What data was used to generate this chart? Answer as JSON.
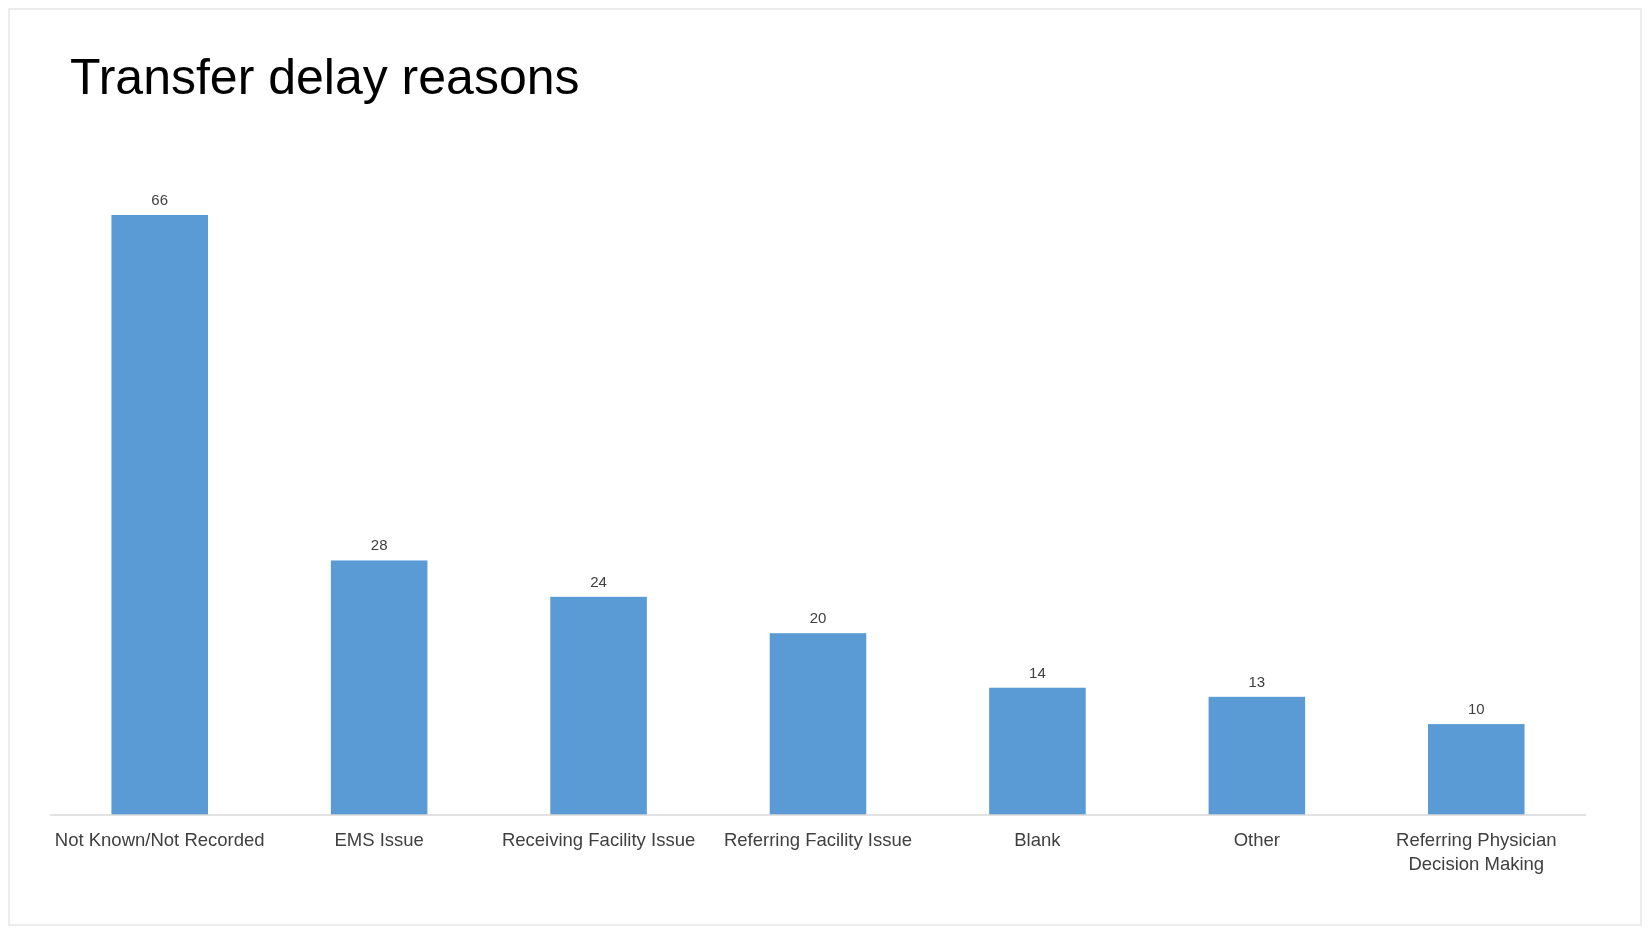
{
  "chart_data": {
    "type": "bar",
    "title": "Transfer delay reasons",
    "categories": [
      "Not Known/Not Recorded",
      "EMS Issue",
      "Receiving Facility Issue",
      "Referring Facility Issue",
      "Blank",
      "Other",
      "Referring Physician Decision Making"
    ],
    "values": [
      66,
      28,
      24,
      20,
      14,
      13,
      10
    ],
    "color": "#5b9bd5",
    "data_labels": true
  }
}
